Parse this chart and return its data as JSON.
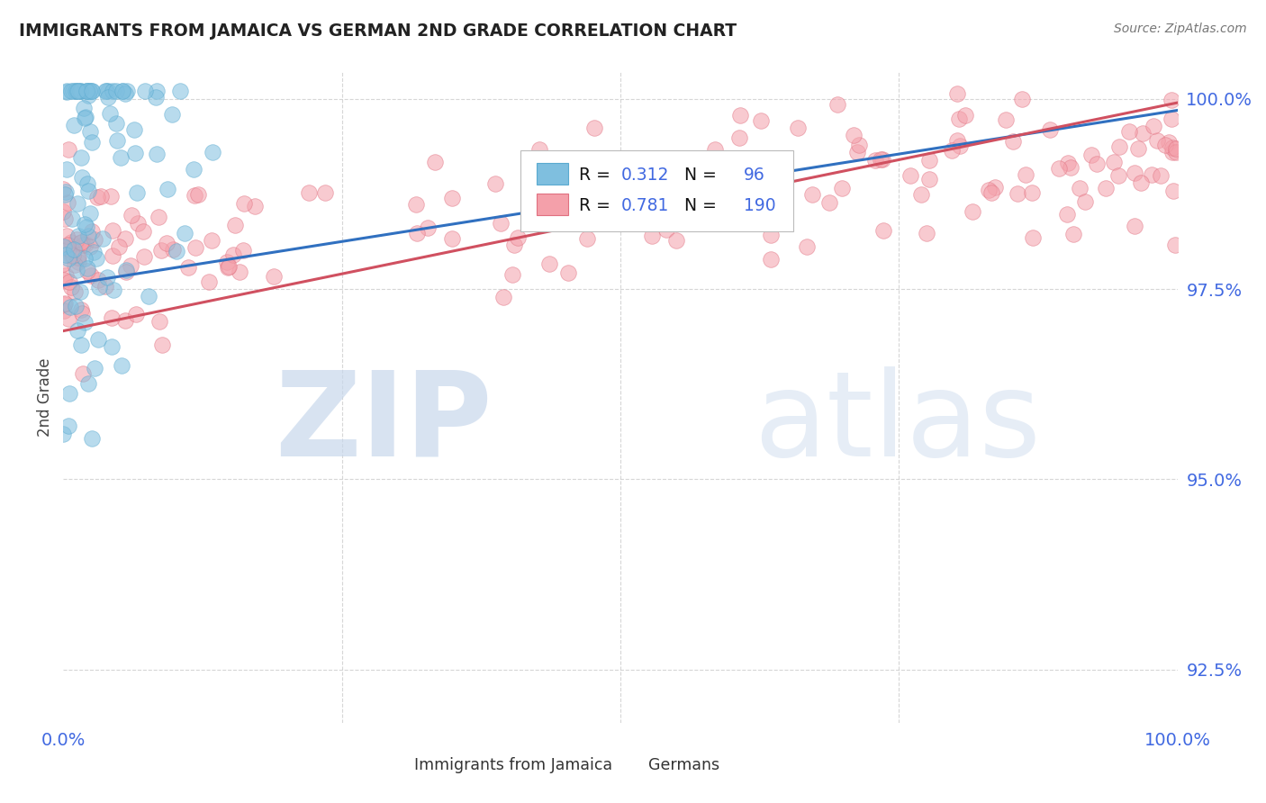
{
  "title": "IMMIGRANTS FROM JAMAICA VS GERMAN 2ND GRADE CORRELATION CHART",
  "source": "Source: ZipAtlas.com",
  "ylabel": "2nd Grade",
  "xmin": 0.0,
  "xmax": 1.0,
  "ymin": 0.918,
  "ymax": 1.0035,
  "yticks": [
    0.925,
    0.95,
    0.975,
    1.0
  ],
  "ytick_labels": [
    "92.5%",
    "95.0%",
    "97.5%",
    "100.0%"
  ],
  "jamaica_color": "#7fbfdf",
  "jamaica_edge": "#5aaad0",
  "german_color": "#f4a0aa",
  "german_edge": "#e07080",
  "jamaica_R": 0.312,
  "jamaica_N": 96,
  "german_R": 0.781,
  "german_N": 190,
  "legend_label_jamaica": "Immigrants from Jamaica",
  "legend_label_german": "Germans",
  "watermark_zip": "ZIP",
  "watermark_atlas": "atlas",
  "background_color": "#ffffff",
  "grid_color": "#cccccc",
  "title_color": "#222222",
  "tick_color": "#4169E1",
  "jamaica_line_color": "#3070c0",
  "german_line_color": "#d05060",
  "jamaica_line_start_y": 0.9755,
  "jamaica_line_end_y": 0.9985,
  "german_line_start_y": 0.9695,
  "german_line_end_y": 0.9995
}
